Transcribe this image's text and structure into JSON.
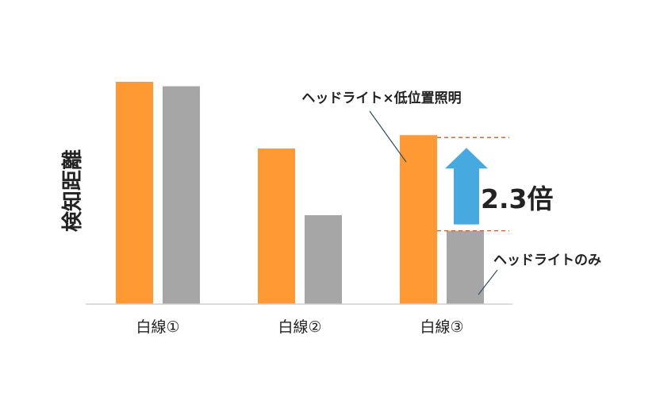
{
  "chart_data": {
    "type": "bar",
    "ylabel": "検知距離",
    "categories": [
      "白線①",
      "白線②",
      "白線③"
    ],
    "series": [
      {
        "name": "ヘッドライト×低位置照明",
        "values": [
          100,
          70,
          76
        ]
      },
      {
        "name": "ヘッドライトのみ",
        "values": [
          98,
          40,
          33
        ]
      }
    ],
    "ylim": [
      0,
      100
    ],
    "grid": false,
    "colors": [
      "#FF9933",
      "#A6A6A6"
    ],
    "annotation": {
      "text": "2.3倍",
      "arrow_color": "#46A9E0",
      "dash_color": "#C0622B",
      "category_index": 2
    }
  }
}
